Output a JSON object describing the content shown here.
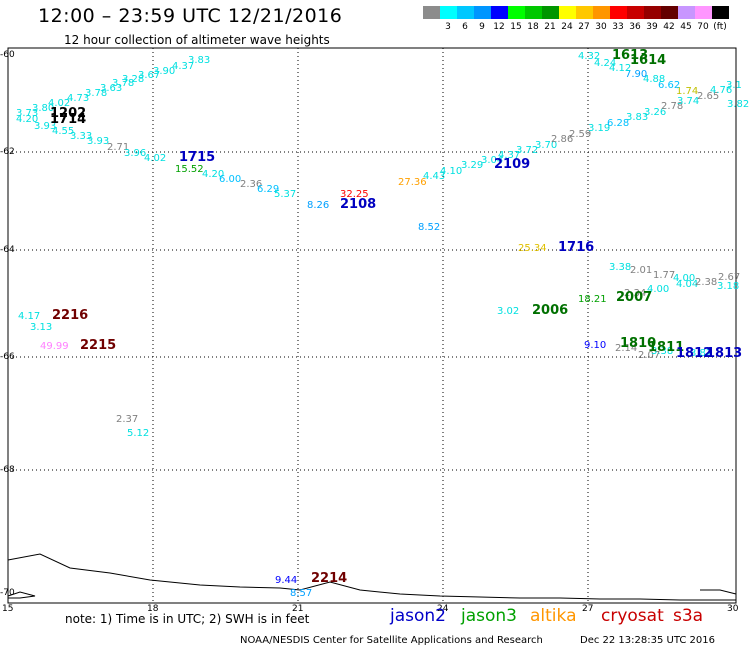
{
  "header": {
    "title": "12:00 – 23:59 UTC 12/21/2016",
    "subtitle": "12 hour collection of altimeter wave heights"
  },
  "legend": {
    "swatches": [
      {
        "color": "#8c8c8c",
        "label": ""
      },
      {
        "color": "#00ffff",
        "label": "3"
      },
      {
        "color": "#00c8ff",
        "label": "6"
      },
      {
        "color": "#0096ff",
        "label": "9"
      },
      {
        "color": "#0000ff",
        "label": "12"
      },
      {
        "color": "#00ff00",
        "label": "15"
      },
      {
        "color": "#00c800",
        "label": "18"
      },
      {
        "color": "#009600",
        "label": "21"
      },
      {
        "color": "#ffff00",
        "label": "24"
      },
      {
        "color": "#ffc800",
        "label": "27"
      },
      {
        "color": "#ff9600",
        "label": "30"
      },
      {
        "color": "#ff0000",
        "label": "33"
      },
      {
        "color": "#c80000",
        "label": "36"
      },
      {
        "color": "#960000",
        "label": "39"
      },
      {
        "color": "#640000",
        "label": "42"
      },
      {
        "color": "#c896ff",
        "label": "45"
      },
      {
        "color": "#ff96ff",
        "label": "70"
      },
      {
        "color": "#000000",
        "label": "(ft)"
      }
    ]
  },
  "axes": {
    "x_ticks": [
      "15",
      "18",
      "21",
      "24",
      "27",
      "30"
    ],
    "y_ticks": [
      "-60",
      "-62",
      "-64",
      "-66",
      "-68",
      "-70"
    ]
  },
  "labels": [
    {
      "t": "3.73",
      "c": "#00e0e0",
      "x": 16,
      "y": 108
    },
    {
      "t": "3.80",
      "c": "#00e0e0",
      "x": 32,
      "y": 103
    },
    {
      "t": "4.02",
      "c": "#00e0e0",
      "x": 48,
      "y": 98
    },
    {
      "t": "4.73",
      "c": "#00e0e0",
      "x": 67,
      "y": 93
    },
    {
      "t": "3.78",
      "c": "#00e0e0",
      "x": 85,
      "y": 88
    },
    {
      "t": "3.63",
      "c": "#00e0e0",
      "x": 100,
      "y": 83
    },
    {
      "t": "3.78",
      "c": "#00e0e0",
      "x": 112,
      "y": 78
    },
    {
      "t": "3.28",
      "c": "#00e0e0",
      "x": 122,
      "y": 74
    },
    {
      "t": "3.67",
      "c": "#00e0e0",
      "x": 138,
      "y": 70
    },
    {
      "t": "3.90",
      "c": "#00e0e0",
      "x": 153,
      "y": 66
    },
    {
      "t": "4.37",
      "c": "#00e0e0",
      "x": 172,
      "y": 61
    },
    {
      "t": "3.83",
      "c": "#00e0e0",
      "x": 188,
      "y": 55
    },
    {
      "t": "4.20",
      "c": "#00e0e0",
      "x": 16,
      "y": 114
    },
    {
      "t": "3.93",
      "c": "#00e0e0",
      "x": 34,
      "y": 121
    },
    {
      "t": "4.55",
      "c": "#00e0e0",
      "x": 52,
      "y": 126
    },
    {
      "t": "3.33",
      "c": "#00e0e0",
      "x": 70,
      "y": 131
    },
    {
      "t": "3.93",
      "c": "#00e0e0",
      "x": 87,
      "y": 136
    },
    {
      "t": "2.71",
      "c": "#808080",
      "x": 107,
      "y": 142
    },
    {
      "t": "3.96",
      "c": "#00e0e0",
      "x": 124,
      "y": 148
    },
    {
      "t": "4.02",
      "c": "#00e0e0",
      "x": 144,
      "y": 153
    },
    {
      "t": "15.52",
      "c": "#00a000",
      "x": 175,
      "y": 164
    },
    {
      "t": "4.20",
      "c": "#00e0e0",
      "x": 202,
      "y": 169
    },
    {
      "t": "6.00",
      "c": "#00c0ff",
      "x": 219,
      "y": 174
    },
    {
      "t": "2.36",
      "c": "#808080",
      "x": 240,
      "y": 179
    },
    {
      "t": "6.29",
      "c": "#00c0ff",
      "x": 257,
      "y": 184
    },
    {
      "t": "5.37",
      "c": "#00e0e0",
      "x": 274,
      "y": 189
    },
    {
      "t": "8.26",
      "c": "#00a0ff",
      "x": 307,
      "y": 200
    },
    {
      "t": "32.25",
      "c": "#ff0000",
      "x": 340,
      "y": 189
    },
    {
      "t": "27.36",
      "c": "#ffa000",
      "x": 398,
      "y": 177
    },
    {
      "t": "4.43",
      "c": "#00e0e0",
      "x": 423,
      "y": 171
    },
    {
      "t": "4.10",
      "c": "#00e0e0",
      "x": 440,
      "y": 166
    },
    {
      "t": "3.29",
      "c": "#00e0e0",
      "x": 461,
      "y": 160
    },
    {
      "t": "3.04",
      "c": "#00e0e0",
      "x": 481,
      "y": 155
    },
    {
      "t": "4.37",
      "c": "#00e0e0",
      "x": 498,
      "y": 150
    },
    {
      "t": "3.72",
      "c": "#00e0e0",
      "x": 516,
      "y": 145
    },
    {
      "t": "3.70",
      "c": "#00e0e0",
      "x": 535,
      "y": 140
    },
    {
      "t": "2.86",
      "c": "#808080",
      "x": 551,
      "y": 134
    },
    {
      "t": "2.59",
      "c": "#808080",
      "x": 569,
      "y": 129
    },
    {
      "t": "3.19",
      "c": "#00e0e0",
      "x": 588,
      "y": 123
    },
    {
      "t": "6.28",
      "c": "#00c0ff",
      "x": 607,
      "y": 118
    },
    {
      "t": "3.83",
      "c": "#00e0e0",
      "x": 626,
      "y": 112
    },
    {
      "t": "3.26",
      "c": "#00e0e0",
      "x": 644,
      "y": 107
    },
    {
      "t": "2.78",
      "c": "#808080",
      "x": 661,
      "y": 101
    },
    {
      "t": "3.74",
      "c": "#00e0e0",
      "x": 677,
      "y": 96
    },
    {
      "t": "3.82",
      "c": "#00e0e0",
      "x": 727,
      "y": 99
    },
    {
      "t": "2.65",
      "c": "#808080",
      "x": 697,
      "y": 91
    },
    {
      "t": "1.74",
      "c": "#c0c000",
      "x": 676,
      "y": 86
    },
    {
      "t": "4.76",
      "c": "#00e0e0",
      "x": 710,
      "y": 85
    },
    {
      "t": "3.1",
      "c": "#00e0e0",
      "x": 726,
      "y": 80
    },
    {
      "t": "6.62",
      "c": "#00c0ff",
      "x": 658,
      "y": 80
    },
    {
      "t": "4.88",
      "c": "#00e0e0",
      "x": 643,
      "y": 74
    },
    {
      "t": "7.90",
      "c": "#00a0ff",
      "x": 625,
      "y": 69
    },
    {
      "t": "4.12",
      "c": "#00e0e0",
      "x": 609,
      "y": 63
    },
    {
      "t": "4.24",
      "c": "#00e0e0",
      "x": 594,
      "y": 58
    },
    {
      "t": "4.32",
      "c": "#00e0e0",
      "x": 578,
      "y": 51
    },
    {
      "t": "8.52",
      "c": "#00a0ff",
      "x": 418,
      "y": 222
    },
    {
      "t": "25.34",
      "c": "#e0c000",
      "x": 518,
      "y": 243
    },
    {
      "t": "3.38",
      "c": "#00e0e0",
      "x": 609,
      "y": 262
    },
    {
      "t": "2.01",
      "c": "#808080",
      "x": 630,
      "y": 265
    },
    {
      "t": "1.77",
      "c": "#808080",
      "x": 653,
      "y": 270
    },
    {
      "t": "4.00",
      "c": "#00e0e0",
      "x": 673,
      "y": 273
    },
    {
      "t": "4.00",
      "c": "#00e0e0",
      "x": 647,
      "y": 284
    },
    {
      "t": "2.34",
      "c": "#808080",
      "x": 624,
      "y": 288
    },
    {
      "t": "4.04",
      "c": "#00e0e0",
      "x": 676,
      "y": 279
    },
    {
      "t": "2.38",
      "c": "#808080",
      "x": 695,
      "y": 277
    },
    {
      "t": "2.67",
      "c": "#808080",
      "x": 718,
      "y": 272
    },
    {
      "t": "3.18",
      "c": "#00e0e0",
      "x": 717,
      "y": 281
    },
    {
      "t": "18.21",
      "c": "#00a000",
      "x": 578,
      "y": 294
    },
    {
      "t": "3.02",
      "c": "#00e0e0",
      "x": 497,
      "y": 306
    },
    {
      "t": "9.10",
      "c": "#0000ff",
      "x": 584,
      "y": 340
    },
    {
      "t": "2.14",
      "c": "#808080",
      "x": 615,
      "y": 343
    },
    {
      "t": "2.07",
      "c": "#808080",
      "x": 638,
      "y": 350
    },
    {
      "t": "3.38",
      "c": "#00e0e0",
      "x": 651,
      "y": 346
    },
    {
      "t": "3.82",
      "c": "#00e0e0",
      "x": 690,
      "y": 348
    },
    {
      "t": "4.17",
      "c": "#00e0e0",
      "x": 18,
      "y": 311
    },
    {
      "t": "3.13",
      "c": "#00e0e0",
      "x": 30,
      "y": 322
    },
    {
      "t": "49.99",
      "c": "#ff80ff",
      "x": 40,
      "y": 341
    },
    {
      "t": "2.37",
      "c": "#808080",
      "x": 116,
      "y": 414
    },
    {
      "t": "5.12",
      "c": "#00e0e0",
      "x": 127,
      "y": 428
    },
    {
      "t": "9.44",
      "c": "#0000ff",
      "x": 275,
      "y": 575
    },
    {
      "t": "8.57",
      "c": "#00a0ff",
      "x": 290,
      "y": 588
    }
  ],
  "passes": [
    {
      "t": "1714",
      "c": "#000000",
      "x": 50,
      "y": 113
    },
    {
      "t": "1202",
      "c": "#000000",
      "x": 50,
      "y": 107
    },
    {
      "t": "1715",
      "c": "#0000c0",
      "x": 179,
      "y": 151
    },
    {
      "t": "2108",
      "c": "#0000c0",
      "x": 340,
      "y": 198
    },
    {
      "t": "2109",
      "c": "#0000c0",
      "x": 494,
      "y": 158
    },
    {
      "t": "1613",
      "c": "#007000",
      "x": 612,
      "y": 49
    },
    {
      "t": "1614",
      "c": "#007000",
      "x": 630,
      "y": 54
    },
    {
      "t": "1716",
      "c": "#0000c0",
      "x": 558,
      "y": 241
    },
    {
      "t": "2007",
      "c": "#007000",
      "x": 616,
      "y": 291
    },
    {
      "t": "2006",
      "c": "#007000",
      "x": 532,
      "y": 304
    },
    {
      "t": "1810",
      "c": "#007000",
      "x": 620,
      "y": 337
    },
    {
      "t": "1811",
      "c": "#007000",
      "x": 648,
      "y": 341
    },
    {
      "t": "1812",
      "c": "#0000c0",
      "x": 676,
      "y": 347
    },
    {
      "t": "1813",
      "c": "#0000c0",
      "x": 706,
      "y": 347
    },
    {
      "t": "2216",
      "c": "#700000",
      "x": 52,
      "y": 309
    },
    {
      "t": "2215",
      "c": "#700000",
      "x": 80,
      "y": 339
    },
    {
      "t": "2214",
      "c": "#700000",
      "x": 311,
      "y": 572
    }
  ],
  "footer": {
    "note": "note:  1) Time is in UTC; 2) SWH is in feet",
    "sats": [
      {
        "t": "jason2",
        "c": "#0000c8"
      },
      {
        "t": "jason3",
        "c": "#00a000"
      },
      {
        "t": "altika",
        "c": "#ff9600"
      },
      {
        "t": "cryosat",
        "c": "#c80000"
      },
      {
        "t": "s3a",
        "c": "#c80000"
      }
    ],
    "credit": "NOAA/NESDIS Center for Satellite Applications and Research",
    "stamp": "Dec 22 13:28:35 UTC 2016"
  }
}
